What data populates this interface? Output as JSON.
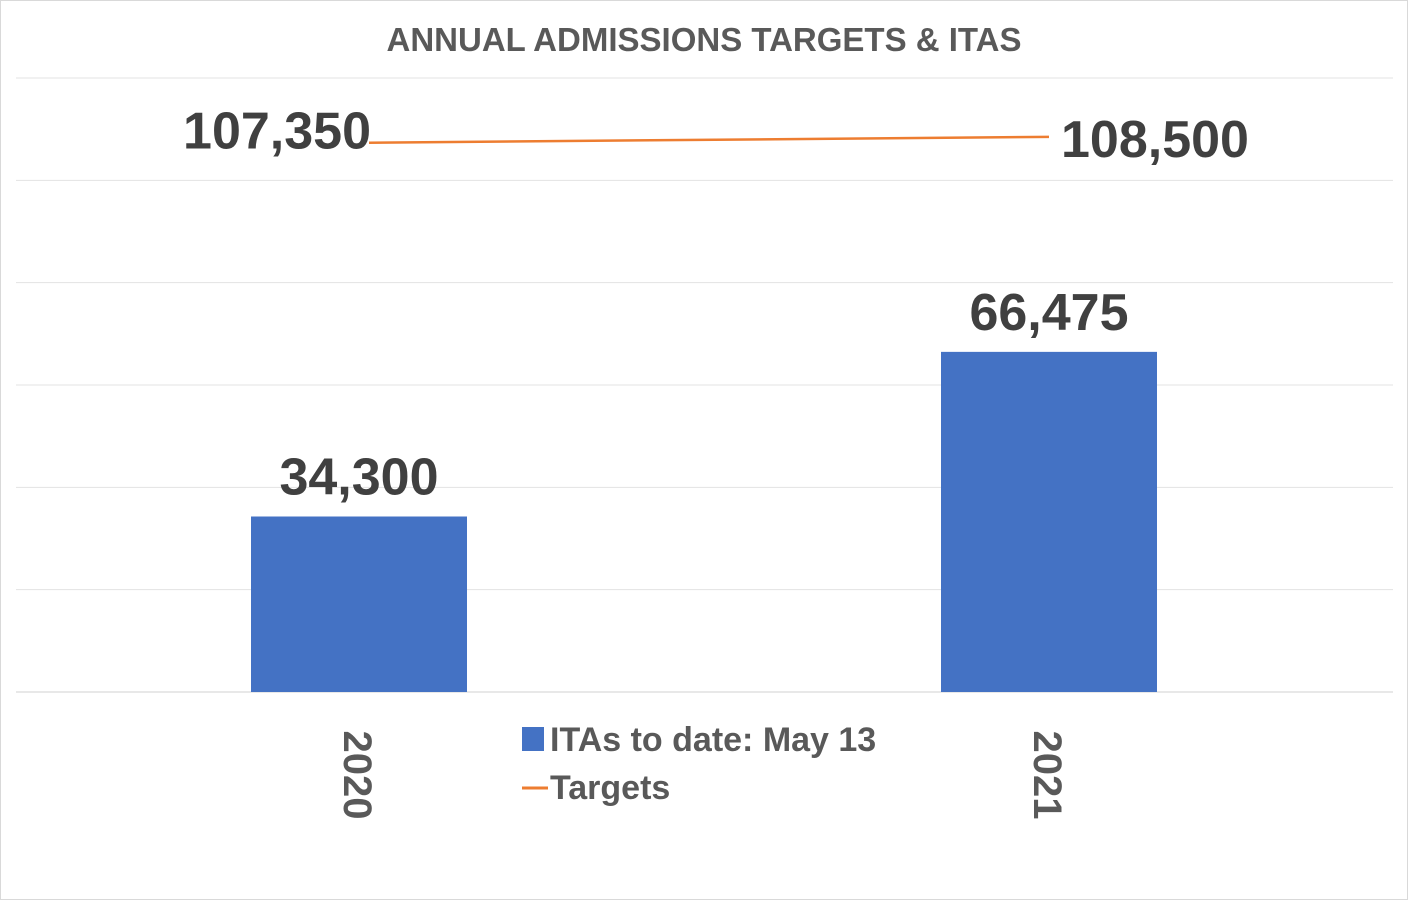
{
  "chart_data": {
    "type": "bar",
    "title": "ANNUAL ADMISSIONS TARGETS & ITAS",
    "xlabel": "",
    "ylabel": "",
    "categories": [
      "2020",
      "2021"
    ],
    "series": [
      {
        "name": "ITAs to date: May 13",
        "type": "bar",
        "color": "#4472c4",
        "values": [
          34300,
          66475
        ],
        "labels": [
          "34,300",
          "66,475"
        ]
      },
      {
        "name": "Targets",
        "type": "line",
        "color": "#ed7d31",
        "values": [
          107350,
          108500
        ],
        "labels": [
          "107,350",
          "108,500"
        ]
      }
    ],
    "ylim": [
      0,
      120000
    ],
    "y_gridlines": [
      0,
      20000,
      40000,
      60000,
      80000,
      100000,
      120000
    ],
    "grid": true,
    "legend": "bottom-center"
  }
}
